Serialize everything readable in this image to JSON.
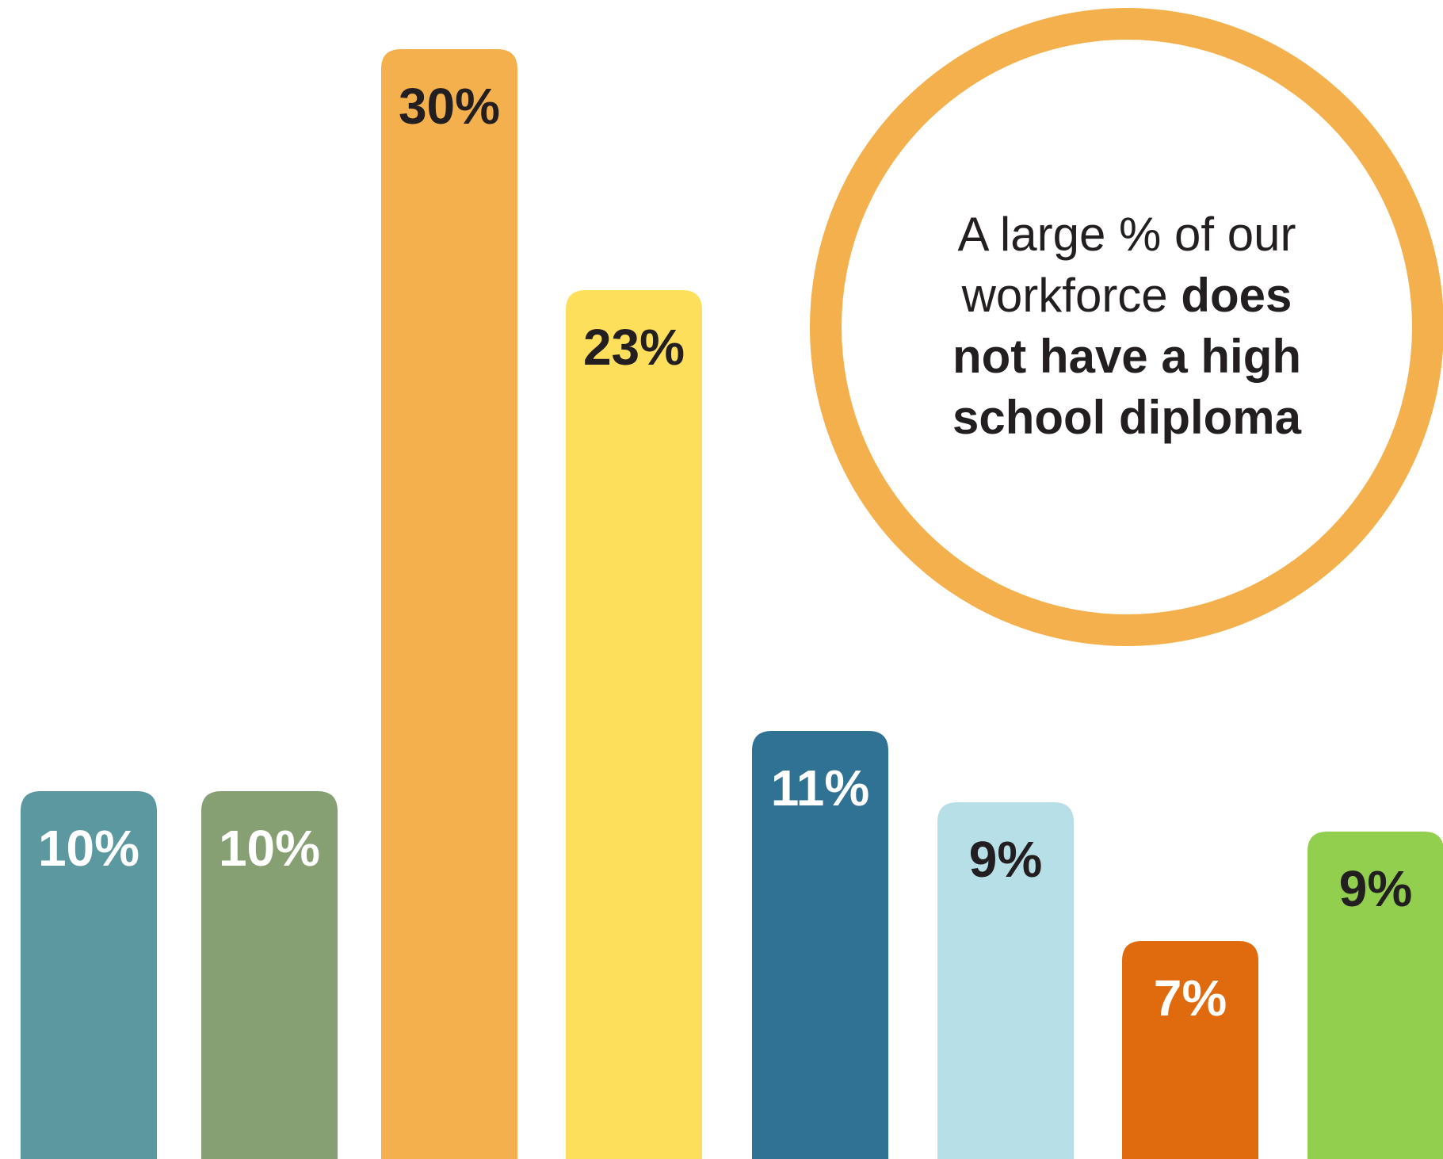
{
  "chart_data": {
    "type": "bar",
    "categories": [
      "",
      "",
      "",
      "",
      "",
      "",
      "",
      ""
    ],
    "values": [
      10,
      10,
      30,
      23,
      11,
      9,
      7,
      9
    ],
    "value_labels": [
      "10%",
      "10%",
      "30%",
      "23%",
      "11%",
      "9%",
      "7%",
      "9%"
    ],
    "colors": [
      "#5b98a0",
      "#86a073",
      "#f4b04c",
      "#fddf5b",
      "#307293",
      "#b7dfe8",
      "#e06b0e",
      "#92cf4f"
    ],
    "label_colors": [
      "#ffffff",
      "#ffffff",
      "#231f20",
      "#231f20",
      "#ffffff",
      "#231f20",
      "#ffffff",
      "#231f20"
    ],
    "ylim": [
      0,
      30
    ],
    "grid": false,
    "legend": "none"
  },
  "callout": {
    "ring_color": "#f4b04c",
    "text_regular": "A large % of our workforce ",
    "text_bold": "does not have a high school diploma"
  }
}
